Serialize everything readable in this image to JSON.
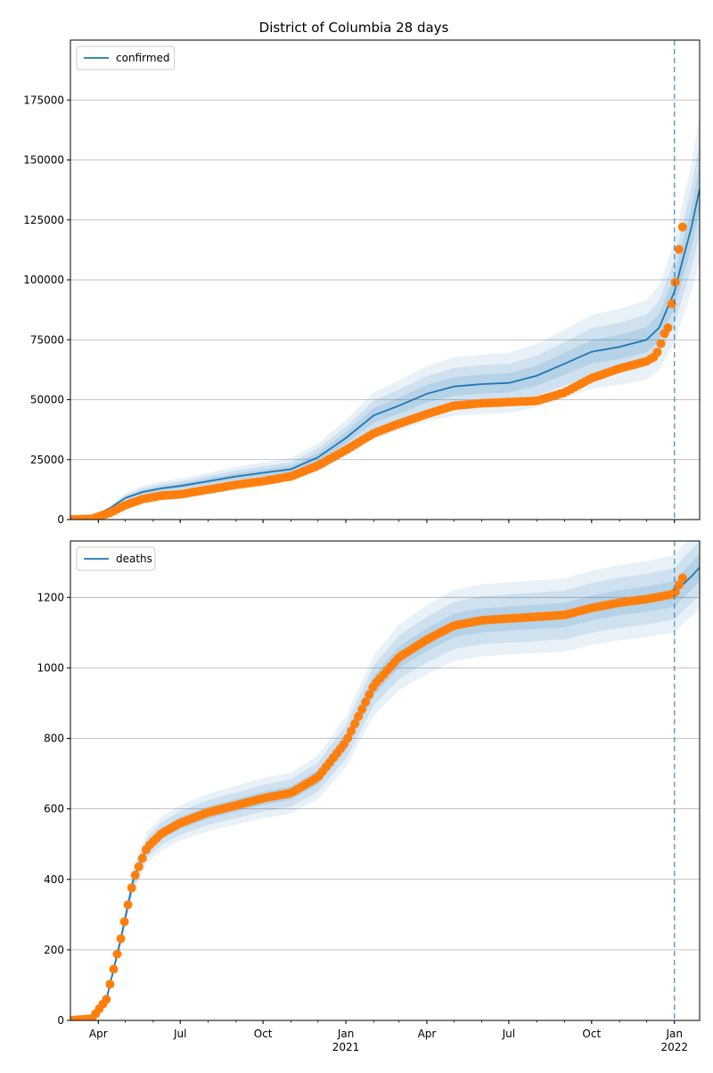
{
  "figure": {
    "title": "District of Columbia 28 days"
  },
  "colors": {
    "model": "#1f77b4",
    "observed": "#ff7f0e",
    "band": "#1f77b4",
    "grid": "#b0b0b0",
    "forecast_line": "#1f77b4"
  },
  "chart_data": [
    {
      "type": "line",
      "title": "District of Columbia 28 days",
      "legend": {
        "location": "upper left",
        "entries": [
          "confirmed"
        ]
      },
      "x_ticks": [
        "Apr",
        "Jul",
        "Oct",
        "Jan\n2021",
        "Apr",
        "Jul",
        "Oct",
        "Jan\n2022"
      ],
      "y_ticks": [
        "0",
        "25000",
        "50000",
        "75000",
        "100000",
        "125000",
        "150000",
        "175000"
      ],
      "xlim": [
        "2020-03-01",
        "2022-01-29"
      ],
      "ylim": [
        0,
        200000
      ],
      "grid": "horizontal",
      "forecast_start": "2022-01-01",
      "series": [
        {
          "name": "confirmed",
          "kind": "model-line",
          "x": [
            "2020-03-01",
            "2020-03-25",
            "2020-04-15",
            "2020-05-01",
            "2020-05-20",
            "2020-06-10",
            "2020-07-01",
            "2020-08-01",
            "2020-09-01",
            "2020-10-01",
            "2020-11-01",
            "2020-12-01",
            "2021-01-01",
            "2021-02-01",
            "2021-03-01",
            "2021-04-01",
            "2021-05-01",
            "2021-06-01",
            "2021-07-01",
            "2021-08-01",
            "2021-09-01",
            "2021-10-01",
            "2021-11-01",
            "2021-12-01",
            "2021-12-15",
            "2022-01-01",
            "2022-01-10",
            "2022-01-20",
            "2022-01-29"
          ],
          "values": [
            0,
            1000,
            5000,
            9000,
            11500,
            13000,
            14000,
            16000,
            18000,
            19500,
            21000,
            26000,
            34000,
            43500,
            47500,
            52500,
            55500,
            56500,
            57000,
            60000,
            65000,
            70000,
            72000,
            75000,
            80000,
            95000,
            108000,
            122000,
            138000
          ]
        },
        {
          "name": "observed",
          "kind": "points",
          "x": [
            "2020-03-01",
            "2020-03-25",
            "2020-04-15",
            "2020-05-01",
            "2020-05-20",
            "2020-06-10",
            "2020-07-01",
            "2020-08-01",
            "2020-09-01",
            "2020-10-01",
            "2020-11-01",
            "2020-12-01",
            "2021-01-01",
            "2021-02-01",
            "2021-03-01",
            "2021-04-01",
            "2021-05-01",
            "2021-06-01",
            "2021-07-01",
            "2021-08-01",
            "2021-09-01",
            "2021-10-01",
            "2021-11-01",
            "2021-12-01",
            "2021-12-10",
            "2021-12-15",
            "2021-12-20",
            "2021-12-25",
            "2021-12-29",
            "2022-01-01",
            "2022-01-03",
            "2022-01-05",
            "2022-01-08",
            "2022-01-10"
          ],
          "values": [
            0,
            300,
            3000,
            6000,
            8500,
            10000,
            10500,
            12500,
            14500,
            16000,
            18000,
            22500,
            29000,
            36000,
            40000,
            44000,
            47500,
            48500,
            49000,
            49500,
            53000,
            59000,
            63000,
            66000,
            68000,
            71000,
            77000,
            80000,
            90000,
            94000,
            104000,
            110000,
            118000,
            122000
          ]
        }
      ],
      "band_width_fraction": [
        0.22,
        0.14,
        0.07
      ]
    },
    {
      "type": "line",
      "title": "",
      "legend": {
        "location": "upper left",
        "entries": [
          "deaths"
        ]
      },
      "x_ticks": [
        "Apr",
        "Jul",
        "Oct",
        "Jan\n2021",
        "Apr",
        "Jul",
        "Oct",
        "Jan\n2022"
      ],
      "y_ticks": [
        "0",
        "200",
        "400",
        "600",
        "800",
        "1000",
        "1200"
      ],
      "xlim": [
        "2020-03-01",
        "2022-01-29"
      ],
      "ylim": [
        0,
        1360
      ],
      "grid": "horizontal",
      "forecast_start": "2022-01-01",
      "series": [
        {
          "name": "deaths",
          "kind": "model-line",
          "x": [
            "2020-03-01",
            "2020-03-25",
            "2020-04-10",
            "2020-04-25",
            "2020-05-10",
            "2020-05-25",
            "2020-06-10",
            "2020-07-01",
            "2020-08-01",
            "2020-09-01",
            "2020-10-01",
            "2020-11-01",
            "2020-12-01",
            "2021-01-01",
            "2021-02-01",
            "2021-03-01",
            "2021-04-01",
            "2021-05-01",
            "2021-06-01",
            "2021-07-01",
            "2021-08-01",
            "2021-09-01",
            "2021-10-01",
            "2021-11-01",
            "2021-12-01",
            "2022-01-01",
            "2022-01-10",
            "2022-01-20",
            "2022-01-29"
          ],
          "values": [
            0,
            5,
            60,
            220,
            400,
            490,
            530,
            560,
            590,
            610,
            630,
            645,
            690,
            790,
            950,
            1030,
            1080,
            1120,
            1135,
            1140,
            1145,
            1150,
            1170,
            1185,
            1195,
            1210,
            1235,
            1260,
            1285
          ]
        },
        {
          "name": "observed",
          "kind": "points",
          "x": [
            "2020-03-01",
            "2020-03-25",
            "2020-04-10",
            "2020-04-25",
            "2020-05-10",
            "2020-05-25",
            "2020-06-10",
            "2020-07-01",
            "2020-08-01",
            "2020-09-01",
            "2020-10-01",
            "2020-11-01",
            "2020-12-01",
            "2021-01-01",
            "2021-02-01",
            "2021-03-01",
            "2021-04-01",
            "2021-05-01",
            "2021-06-01",
            "2021-07-01",
            "2021-08-01",
            "2021-09-01",
            "2021-10-01",
            "2021-11-01",
            "2021-12-01",
            "2022-01-01",
            "2022-01-05",
            "2022-01-10"
          ],
          "values": [
            0,
            5,
            60,
            220,
            400,
            490,
            530,
            560,
            590,
            610,
            630,
            645,
            690,
            790,
            950,
            1030,
            1080,
            1120,
            1135,
            1140,
            1145,
            1150,
            1170,
            1185,
            1195,
            1210,
            1230,
            1255
          ]
        }
      ],
      "band_width_fraction": [
        0.09,
        0.06,
        0.03
      ]
    }
  ]
}
